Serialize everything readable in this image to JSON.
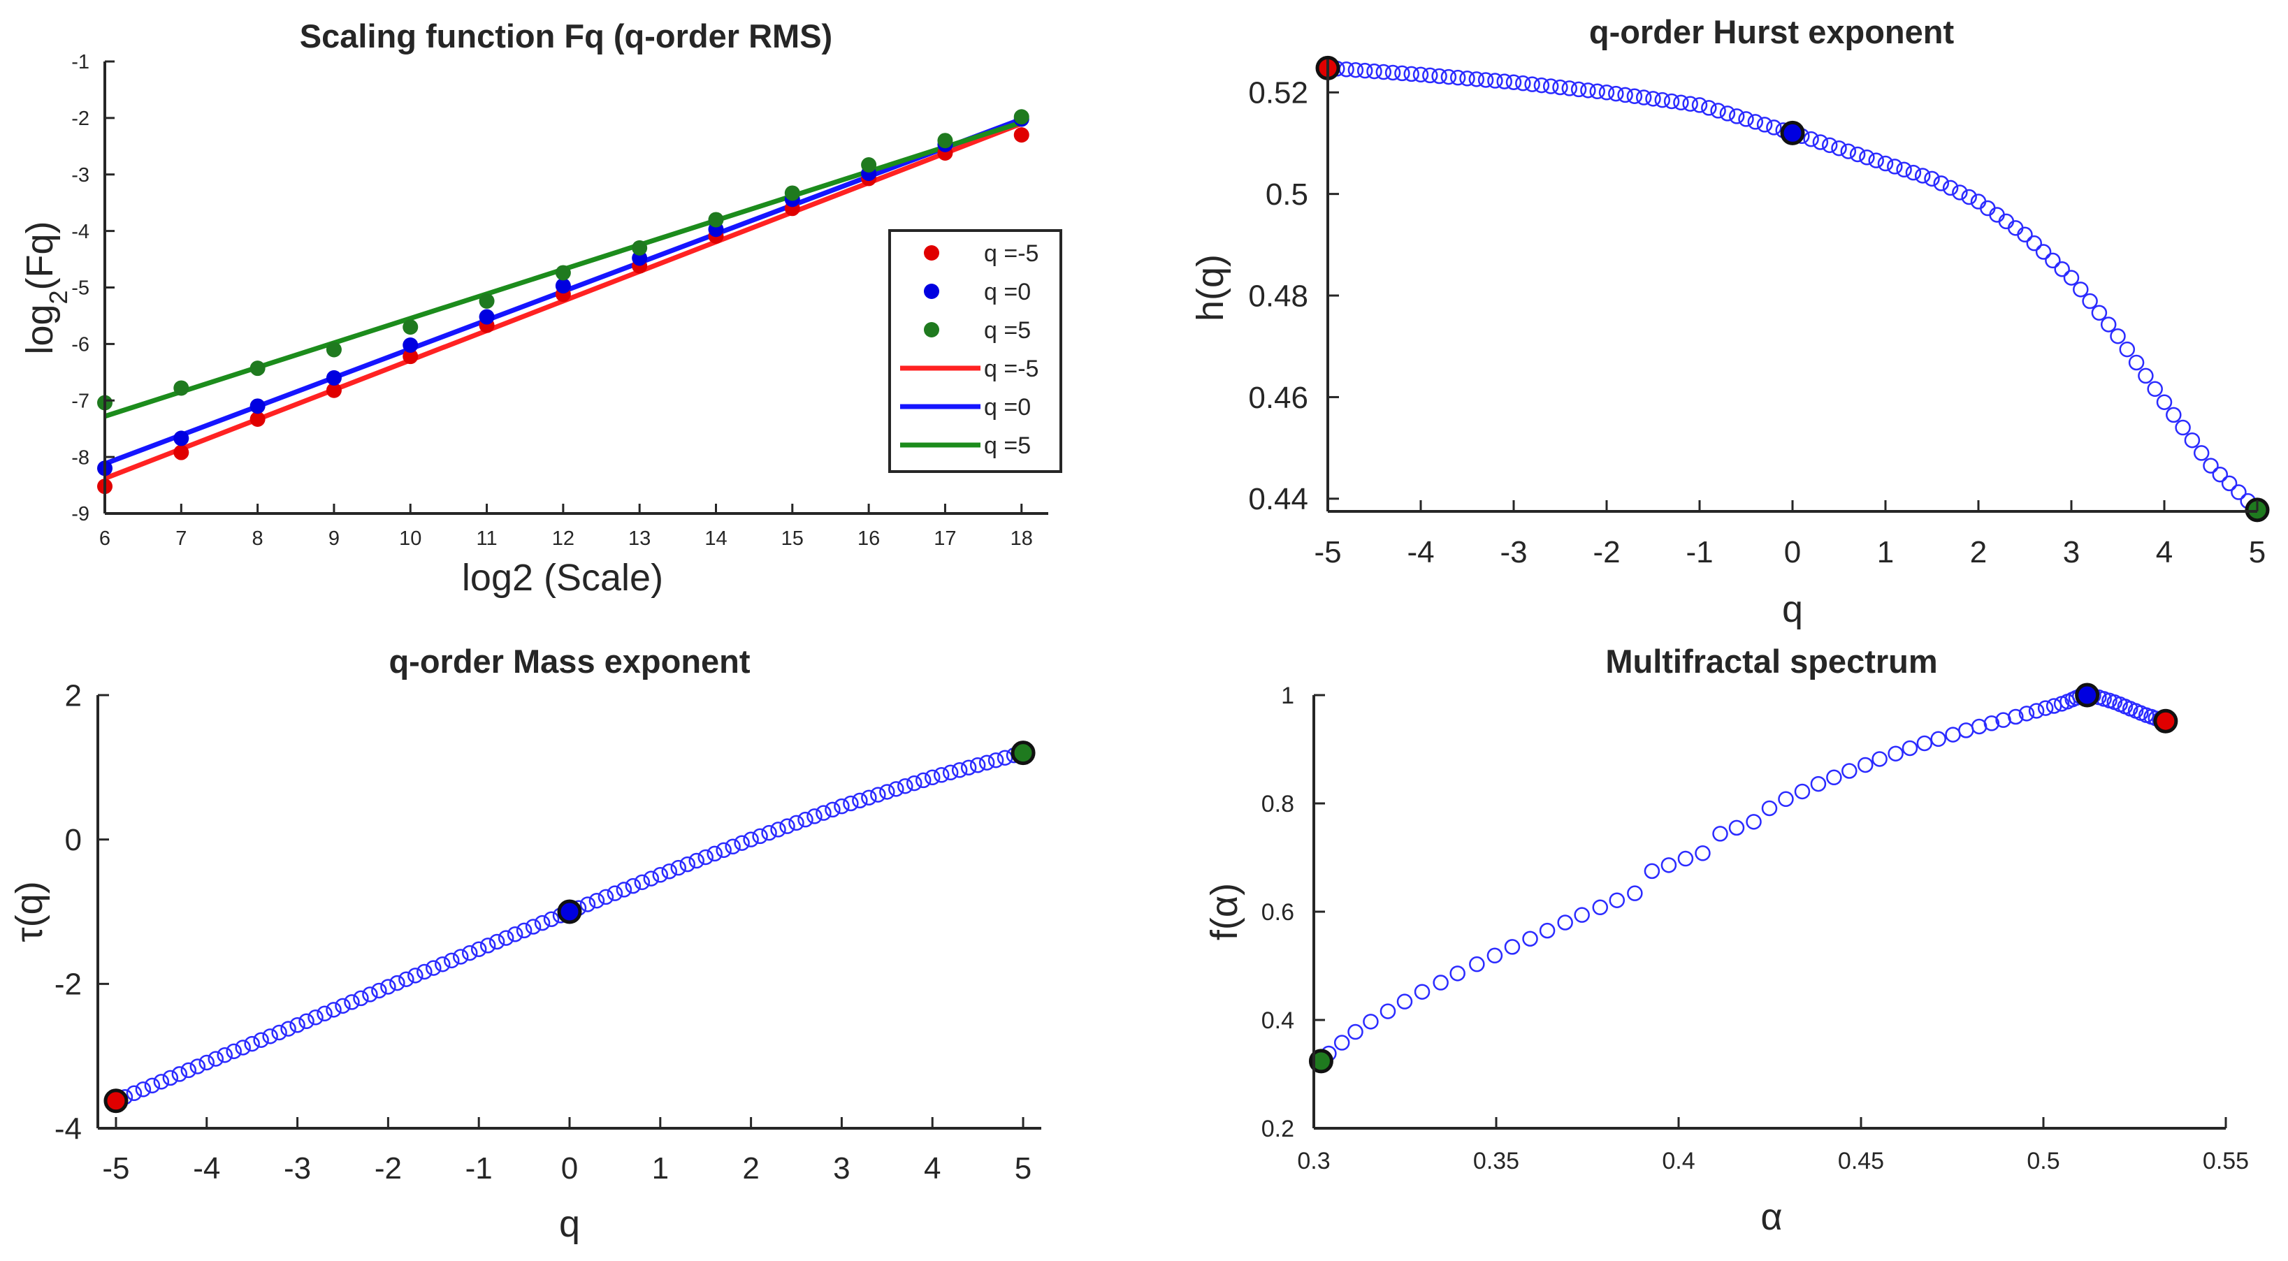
{
  "colors": {
    "red": "#e00000",
    "blue": "#0000e0",
    "green": "#1f7a1f",
    "hollow": "#2b2bff",
    "axis": "#262626",
    "red_line": "#ff2222",
    "blue_line": "#1515ff",
    "green_line": "#1c8c1c"
  },
  "chart_data": [
    {
      "id": "scaling",
      "type": "scatter",
      "title": "Scaling function Fq (q-order RMS)",
      "xlabel": "log2 (Scale)",
      "ylabel_main": "log",
      "ylabel_sub": "2",
      "ylabel_rest": "(Fq)",
      "xlim": [
        6,
        18
      ],
      "ylim": [
        -9,
        -1
      ],
      "xticks": [
        6,
        7,
        8,
        9,
        10,
        11,
        12,
        13,
        14,
        15,
        16,
        17,
        18
      ],
      "xtick_labels": [
        "6",
        "7",
        "8",
        "9",
        "10",
        "11",
        "12",
        "13",
        "14",
        "15",
        "16",
        "17",
        "18"
      ],
      "yticks": [
        -9,
        -8,
        -7,
        -6,
        -5,
        -4,
        -3,
        -2,
        -1
      ],
      "ytick_labels": [
        "-9",
        "-8",
        "-7",
        "-6",
        "-5",
        "-4",
        "-3",
        "-2",
        "-1"
      ],
      "x": [
        6,
        7,
        8,
        9,
        10,
        11,
        12,
        13,
        14,
        15,
        16,
        17,
        18
      ],
      "series": [
        {
          "name": "q =-5",
          "color": "red",
          "values": [
            -8.52,
            -7.92,
            -7.33,
            -6.82,
            -6.22,
            -5.67,
            -5.12,
            -4.62,
            -4.09,
            -3.6,
            -3.07,
            -2.62,
            -2.3
          ],
          "fit": [
            -8.38,
            -2.1
          ]
        },
        {
          "name": "q =0",
          "color": "blue",
          "values": [
            -8.2,
            -7.67,
            -7.1,
            -6.6,
            -6.02,
            -5.52,
            -4.97,
            -4.48,
            -3.97,
            -3.44,
            -2.98,
            -2.47,
            -2.02
          ],
          "fit": [
            -8.12,
            -2.02
          ]
        },
        {
          "name": "q =5",
          "color": "green",
          "values": [
            -7.04,
            -6.78,
            -6.43,
            -6.1,
            -5.7,
            -5.24,
            -4.74,
            -4.3,
            -3.8,
            -3.33,
            -2.83,
            -2.4,
            -1.98
          ],
          "fit": [
            -7.28,
            -2.08
          ]
        }
      ],
      "legend": [
        {
          "label": "q =-5",
          "kind": "marker",
          "color": "red"
        },
        {
          "label": "q =0",
          "kind": "marker",
          "color": "blue"
        },
        {
          "label": "q =5",
          "kind": "marker",
          "color": "green"
        },
        {
          "label": "q =-5",
          "kind": "line",
          "color": "red_line"
        },
        {
          "label": "q =0",
          "kind": "line",
          "color": "blue_line"
        },
        {
          "label": "q =5",
          "kind": "line",
          "color": "green_line"
        }
      ],
      "legend_position": "right"
    },
    {
      "id": "hurst",
      "type": "scatter",
      "title": "q-order Hurst exponent",
      "xlabel": "q",
      "ylabel": "h(q)",
      "xlim": [
        -5,
        5
      ],
      "ylim": [
        0.4375,
        0.5265
      ],
      "xticks": [
        -5,
        -4,
        -3,
        -2,
        -1,
        0,
        1,
        2,
        3,
        4,
        5
      ],
      "xtick_labels": [
        "-5",
        "-4",
        "-3",
        "-2",
        "-1",
        "0",
        "1",
        "2",
        "3",
        "4",
        "5"
      ],
      "yticks": [
        0.44,
        0.46,
        0.48,
        0.5,
        0.52
      ],
      "ytick_labels": [
        "0.44",
        "0.46",
        "0.48",
        "0.5",
        "0.52"
      ],
      "curve_q": [
        -5,
        -4,
        -3,
        -2,
        -1,
        0,
        1,
        1.5,
        2,
        2.5,
        3,
        3.5,
        4,
        4.5,
        5
      ],
      "curve_val": [
        0.5248,
        0.5235,
        0.522,
        0.52,
        0.5175,
        0.512,
        0.506,
        0.503,
        0.4985,
        0.492,
        0.4835,
        0.472,
        0.459,
        0.4465,
        0.4378
      ],
      "curve_count": 101,
      "highlights": [
        {
          "x": -5,
          "y": 0.5248,
          "color": "red"
        },
        {
          "x": 0,
          "y": 0.512,
          "color": "blue"
        },
        {
          "x": 5,
          "y": 0.4378,
          "color": "green"
        }
      ]
    },
    {
      "id": "mass",
      "type": "scatter",
      "title": "q-order Mass exponent",
      "xlabel": "q",
      "ylabel": "τ(q)",
      "xlim": [
        -5,
        5
      ],
      "ylim": [
        -4,
        2
      ],
      "xticks": [
        -5,
        -4,
        -3,
        -2,
        -1,
        0,
        1,
        2,
        3,
        4,
        5
      ],
      "xtick_labels": [
        "-5",
        "-4",
        "-3",
        "-2",
        "-1",
        "0",
        "1",
        "2",
        "3",
        "4",
        "5"
      ],
      "yticks": [
        -4,
        -2,
        0,
        2
      ],
      "ytick_labels": [
        "-4",
        "-2",
        "0",
        "2"
      ],
      "curve_q": [
        -5,
        -4,
        -3,
        -2,
        -1,
        0,
        1,
        2,
        3,
        4,
        5
      ],
      "curve_val": [
        -3.62,
        -3.09,
        -2.57,
        -2.04,
        -1.52,
        -1.0,
        -0.49,
        0.0,
        0.46,
        0.86,
        1.2
      ],
      "curve_count": 101,
      "highlights": [
        {
          "x": -5,
          "y": -3.62,
          "color": "red"
        },
        {
          "x": 0,
          "y": -1.0,
          "color": "blue"
        },
        {
          "x": 5,
          "y": 1.2,
          "color": "green"
        }
      ]
    },
    {
      "id": "spectrum",
      "type": "scatter",
      "title": "Multifractal spectrum",
      "xlabel": "α",
      "ylabel": "f(α)",
      "xlim": [
        0.3,
        0.55
      ],
      "ylim": [
        0.2,
        1.0
      ],
      "xticks": [
        0.3,
        0.35,
        0.4,
        0.45,
        0.5,
        0.55
      ],
      "xtick_labels": [
        "0.3",
        "0.35",
        "0.4",
        "0.45",
        "0.5",
        "0.55"
      ],
      "yticks": [
        0.2,
        0.4,
        0.6,
        0.8,
        1.0
      ],
      "ytick_labels": [
        "0.2",
        "0.4",
        "0.6",
        "0.8",
        "1"
      ],
      "alpha": [
        0.302,
        0.3041,
        0.3077,
        0.3114,
        0.3156,
        0.3203,
        0.3249,
        0.3297,
        0.3348,
        0.3394,
        0.3447,
        0.3496,
        0.3544,
        0.3593,
        0.364,
        0.3689,
        0.3735,
        0.3785,
        0.3831,
        0.388,
        0.3927,
        0.3973,
        0.4019,
        0.4066,
        0.4114,
        0.4159,
        0.4206,
        0.4249,
        0.4294,
        0.4339,
        0.4383,
        0.4426,
        0.4468,
        0.4512,
        0.4551,
        0.4595,
        0.4634,
        0.4674,
        0.4712,
        0.4752,
        0.4788,
        0.4824,
        0.4858,
        0.489,
        0.4924,
        0.4954,
        0.4981,
        0.5006,
        0.5029,
        0.505,
        0.5066,
        0.508,
        0.509,
        0.51,
        0.511,
        0.512,
        0.5137,
        0.5152,
        0.5166,
        0.5181,
        0.5195,
        0.521,
        0.5224,
        0.5238,
        0.5253,
        0.5267,
        0.5282,
        0.5296,
        0.5308,
        0.5319,
        0.5328,
        0.5335
      ],
      "f": [
        0.324,
        0.338,
        0.358,
        0.378,
        0.397,
        0.416,
        0.434,
        0.452,
        0.469,
        0.486,
        0.503,
        0.519,
        0.535,
        0.55,
        0.565,
        0.58,
        0.594,
        0.608,
        0.621,
        0.634,
        0.675,
        0.686,
        0.698,
        0.708,
        0.744,
        0.755,
        0.766,
        0.791,
        0.808,
        0.822,
        0.836,
        0.848,
        0.86,
        0.871,
        0.882,
        0.892,
        0.902,
        0.911,
        0.919,
        0.927,
        0.935,
        0.942,
        0.948,
        0.954,
        0.96,
        0.966,
        0.971,
        0.976,
        0.98,
        0.984,
        0.988,
        0.992,
        0.995,
        0.998,
        0.999,
        1.0,
        0.999,
        0.996,
        0.993,
        0.99,
        0.987,
        0.983,
        0.979,
        0.975,
        0.971,
        0.967,
        0.963,
        0.96,
        0.957,
        0.955,
        0.953,
        0.952
      ],
      "highlights": [
        {
          "x": 0.302,
          "y": 0.324,
          "color": "green"
        },
        {
          "x": 0.512,
          "y": 1.0,
          "color": "blue"
        },
        {
          "x": 0.5335,
          "y": 0.952,
          "color": "red"
        }
      ]
    }
  ]
}
